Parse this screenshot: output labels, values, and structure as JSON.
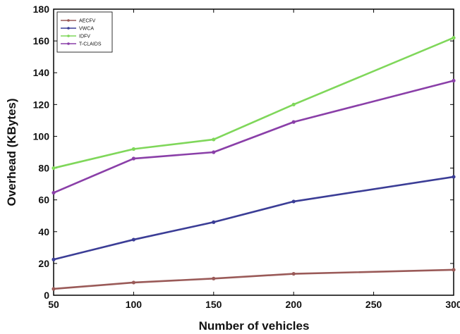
{
  "chart_data": {
    "type": "line",
    "xlabel": "Number of vehicles",
    "ylabel": "Overhead (KBytes)",
    "x": [
      50,
      100,
      150,
      200,
      300
    ],
    "xlim": [
      50,
      300
    ],
    "ylim": [
      0,
      180
    ],
    "xticks": [
      "50",
      "100",
      "150",
      "200",
      "250",
      "300"
    ],
    "xtick_values": [
      50,
      100,
      150,
      200,
      250,
      300
    ],
    "yticks": [
      "0",
      "20",
      "40",
      "60",
      "80",
      "100",
      "120",
      "140",
      "160",
      "180"
    ],
    "ytick_values": [
      0,
      20,
      40,
      60,
      80,
      100,
      120,
      140,
      160,
      180
    ],
    "grid": false,
    "legend_position": "top-left",
    "series": [
      {
        "name": "AECFV",
        "color": "#9a5a58",
        "values": [
          4,
          8,
          10.5,
          13.5,
          16
        ]
      },
      {
        "name": "VWCA",
        "color": "#3b3d96",
        "values": [
          22.5,
          35,
          46,
          59,
          74.5
        ]
      },
      {
        "name": "IDFV",
        "color": "#7fd75a",
        "values": [
          80,
          92,
          98,
          120,
          162
        ]
      },
      {
        "name": "T-CLAIDS",
        "color": "#8a3fa8",
        "values": [
          64.5,
          86,
          90,
          109,
          135
        ]
      }
    ]
  }
}
